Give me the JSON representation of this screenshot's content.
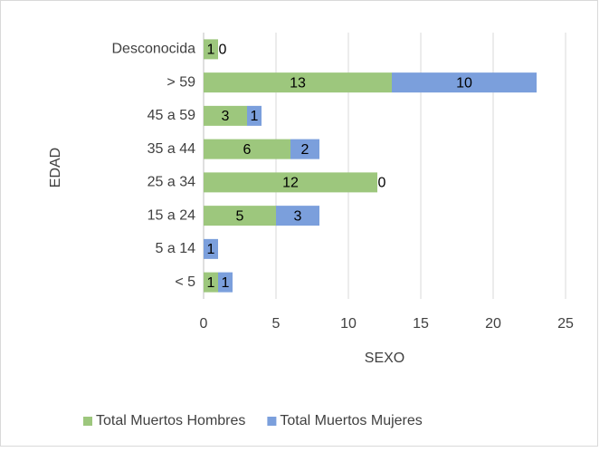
{
  "chart_data": {
    "type": "bar",
    "orientation": "horizontal",
    "stacked": true,
    "categories": [
      "Desconocida",
      "> 59",
      "45 a 59",
      "35 a 44",
      "25 a 34",
      "15 a 24",
      "5 a 14",
      "< 5"
    ],
    "series": [
      {
        "name": "Total Muertos Hombres",
        "color": "#9dc77d",
        "values": [
          1,
          13,
          3,
          6,
          12,
          5,
          0,
          1
        ]
      },
      {
        "name": "Total Muertos Mujeres",
        "color": "#7b9fdc",
        "values": [
          0,
          10,
          1,
          2,
          0,
          3,
          1,
          1
        ]
      }
    ],
    "xlim": [
      0,
      25
    ],
    "xticks": [
      0,
      5,
      10,
      15,
      20,
      25
    ],
    "xlabel": "SEXO",
    "ylabel": "EDAD",
    "grid": true,
    "legend": "bottom"
  }
}
